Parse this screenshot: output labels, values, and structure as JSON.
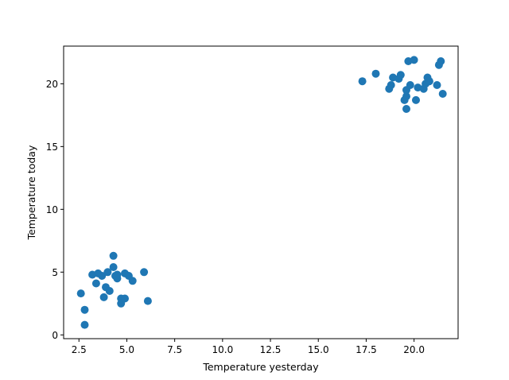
{
  "chart_data": {
    "type": "scatter",
    "xlabel": "Temperature yesterday",
    "ylabel": "Temperature today",
    "xlim": [
      1.7,
      22.3
    ],
    "ylim": [
      -0.3,
      23.0
    ],
    "xticks": [
      2.5,
      5.0,
      7.5,
      10.0,
      12.5,
      15.0,
      17.5,
      20.0
    ],
    "xtick_labels": [
      "2.5",
      "5.0",
      "7.5",
      "10.0",
      "12.5",
      "15.0",
      "17.5",
      "20.0"
    ],
    "yticks": [
      0,
      5,
      10,
      15,
      20
    ],
    "ytick_labels": [
      "0",
      "5",
      "10",
      "15",
      "20"
    ],
    "grid": false,
    "color": "#1f77b4",
    "points": [
      {
        "x": 2.6,
        "y": 3.3
      },
      {
        "x": 2.8,
        "y": 2.0
      },
      {
        "x": 2.8,
        "y": 0.8
      },
      {
        "x": 3.2,
        "y": 4.8
      },
      {
        "x": 3.4,
        "y": 4.1
      },
      {
        "x": 3.5,
        "y": 4.9
      },
      {
        "x": 3.7,
        "y": 4.7
      },
      {
        "x": 3.8,
        "y": 3.0
      },
      {
        "x": 3.9,
        "y": 3.8
      },
      {
        "x": 4.0,
        "y": 5.0
      },
      {
        "x": 4.1,
        "y": 3.5
      },
      {
        "x": 4.3,
        "y": 5.4
      },
      {
        "x": 4.3,
        "y": 6.3
      },
      {
        "x": 4.4,
        "y": 4.7
      },
      {
        "x": 4.5,
        "y": 4.5
      },
      {
        "x": 4.5,
        "y": 4.8
      },
      {
        "x": 4.7,
        "y": 2.9
      },
      {
        "x": 4.7,
        "y": 2.5
      },
      {
        "x": 4.9,
        "y": 4.9
      },
      {
        "x": 4.9,
        "y": 2.9
      },
      {
        "x": 5.1,
        "y": 4.7
      },
      {
        "x": 5.3,
        "y": 4.3
      },
      {
        "x": 5.9,
        "y": 5.0
      },
      {
        "x": 6.1,
        "y": 2.7
      },
      {
        "x": 17.3,
        "y": 20.2
      },
      {
        "x": 18.0,
        "y": 20.8
      },
      {
        "x": 18.7,
        "y": 19.6
      },
      {
        "x": 18.8,
        "y": 19.9
      },
      {
        "x": 18.9,
        "y": 20.5
      },
      {
        "x": 19.2,
        "y": 20.4
      },
      {
        "x": 19.3,
        "y": 20.7
      },
      {
        "x": 19.5,
        "y": 18.7
      },
      {
        "x": 19.6,
        "y": 19.0
      },
      {
        "x": 19.6,
        "y": 18.0
      },
      {
        "x": 19.6,
        "y": 19.5
      },
      {
        "x": 19.7,
        "y": 21.8
      },
      {
        "x": 19.8,
        "y": 19.9
      },
      {
        "x": 20.0,
        "y": 21.9
      },
      {
        "x": 20.1,
        "y": 18.7
      },
      {
        "x": 20.2,
        "y": 19.7
      },
      {
        "x": 20.5,
        "y": 19.6
      },
      {
        "x": 20.6,
        "y": 20.0
      },
      {
        "x": 20.7,
        "y": 20.5
      },
      {
        "x": 20.8,
        "y": 20.2
      },
      {
        "x": 21.2,
        "y": 19.9
      },
      {
        "x": 21.3,
        "y": 21.5
      },
      {
        "x": 21.4,
        "y": 21.8
      },
      {
        "x": 21.5,
        "y": 19.2
      }
    ]
  }
}
